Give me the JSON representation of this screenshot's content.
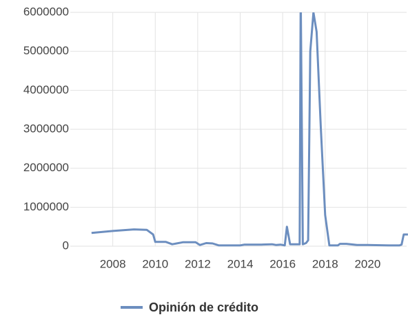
{
  "chart_data": {
    "type": "line",
    "x": [
      2007.0,
      2008.0,
      2009.0,
      2009.6,
      2009.9,
      2010.0,
      2010.5,
      2010.8,
      2011.3,
      2011.9,
      2012.1,
      2012.4,
      2012.7,
      2013.0,
      2014.0,
      2014.2,
      2015.0,
      2015.5,
      2015.7,
      2015.9,
      2016.1,
      2016.2,
      2016.35,
      2016.8,
      2016.85,
      2016.95,
      2017.1,
      2017.2,
      2017.3,
      2017.45,
      2017.6,
      2017.8,
      2018.0,
      2018.2,
      2018.6,
      2018.7,
      2019.0,
      2019.5,
      2020.0,
      2021.0,
      2021.5,
      2021.6,
      2021.7,
      2021.9
    ],
    "series": [
      {
        "name": "Opinión de crédito",
        "color": "#6c8ebf",
        "values": [
          340000,
          390000,
          430000,
          420000,
          300000,
          110000,
          110000,
          50000,
          100000,
          100000,
          30000,
          80000,
          70000,
          20000,
          20000,
          40000,
          40000,
          50000,
          30000,
          40000,
          20000,
          500000,
          50000,
          50000,
          6500000,
          50000,
          80000,
          150000,
          5000000,
          6000000,
          5500000,
          3000000,
          800000,
          20000,
          20000,
          60000,
          60000,
          30000,
          30000,
          20000,
          20000,
          40000,
          300000,
          300000
        ]
      }
    ],
    "xlim": [
      2006,
      2022
    ],
    "xticks": [
      2008,
      2010,
      2012,
      2014,
      2016,
      2018,
      2020
    ],
    "ylim": [
      0,
      6000000
    ],
    "yticks": [
      0,
      1000000,
      2000000,
      3000000,
      4000000,
      5000000,
      6000000
    ],
    "grid": true,
    "legend": "bottom"
  }
}
